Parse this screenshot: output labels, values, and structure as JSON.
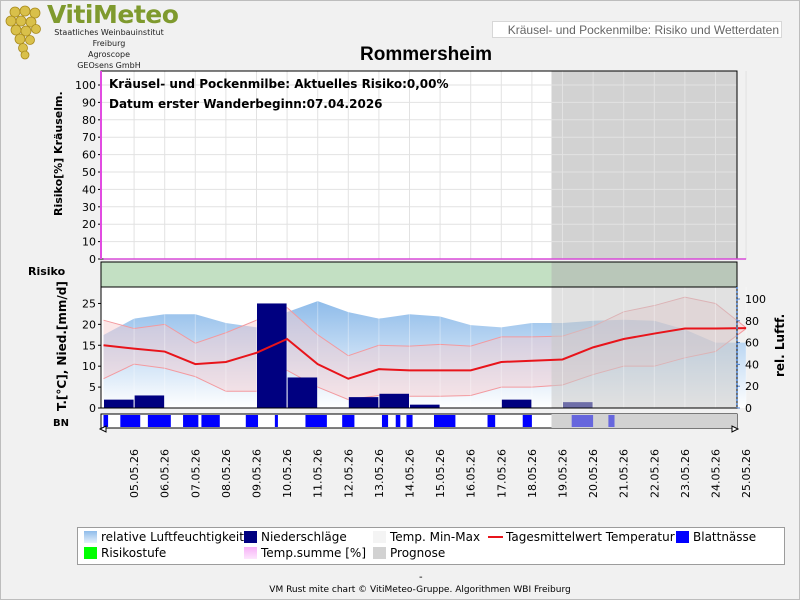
{
  "header": {
    "logo_title": "VitiMeteo",
    "logo_lines": [
      "Staatliches Weinbauinstitut Freiburg",
      "Agroscope",
      "GEOsens GmbH"
    ],
    "page_title": "Kräusel- und Pockenmilbe: Risiko und Wetterdaten"
  },
  "chart_title": "Rommersheim",
  "annotations": {
    "risk_line": "Kräusel- und Pockenmilbe: Aktuelles Risiko:0,00%",
    "date_line": "Datum erster Wanderbeginn:07.04.2026"
  },
  "colors": {
    "humidity": "#a9cdf0",
    "precipitation": "#000080",
    "temp_range": "#f9c9cc",
    "temp_mean": "#e8141b",
    "leaf_wetness": "#0000ff",
    "risk_level": "#00ff00",
    "temp_sum": "#f0a0f0",
    "forecast": "#d2d2d2",
    "risk_band": "#c3e0c3"
  },
  "legend": [
    {
      "label": "relative Luftfeuchtigkeit",
      "icon": "gradient-swatch"
    },
    {
      "label": "Niederschläge",
      "icon": "navy-swatch"
    },
    {
      "label": "Temp. Min-Max",
      "icon": "light-swatch"
    },
    {
      "label": "Tagesmittelwert Temperatur",
      "icon": "red-line"
    },
    {
      "label": "Blattnässe",
      "icon": "blue-swatch"
    },
    {
      "label": "Risikostufe",
      "icon": "green-swatch"
    },
    {
      "label": "Temp.summe [%]",
      "icon": "pink-swatch"
    },
    {
      "label": "Prognose",
      "icon": "gray-swatch"
    }
  ],
  "footer": {
    "dash": "-",
    "credit": "VM Rust mite chart © VitiMeteo-Gruppe. Algorithmen WBI Freiburg"
  },
  "chart_data": [
    {
      "type": "line",
      "panel": "risk",
      "ylabel": "Risiko[%] Kräuselm.",
      "yticks": [
        0,
        10,
        20,
        30,
        40,
        50,
        60,
        70,
        80,
        90,
        100
      ],
      "ylim": [
        0,
        100
      ],
      "series": [
        {
          "name": "Temp.summe [%]",
          "values": [
            0,
            0,
            0,
            0,
            0,
            0,
            0,
            0,
            0,
            0,
            0,
            0,
            0,
            0,
            0,
            0,
            0,
            0,
            0,
            0,
            0,
            0
          ]
        }
      ]
    },
    {
      "type": "area",
      "panel": "risk-band",
      "label": "Risiko",
      "series": [
        {
          "name": "Risikostufe",
          "values": [
            0,
            0,
            0,
            0,
            0,
            0,
            0,
            0,
            0,
            0,
            0,
            0,
            0,
            0,
            0,
            0,
            0,
            0,
            0,
            0,
            0,
            0
          ]
        }
      ]
    },
    {
      "type": "line",
      "panel": "weather",
      "ylabel": "T.[°C], Nied.[mm/d]",
      "ylabel2": "rel. Luftf.",
      "yticks": [
        0,
        5,
        10,
        15,
        20,
        25
      ],
      "ylim": [
        0,
        27.5
      ],
      "yticks2": [
        0,
        20,
        40,
        60,
        80,
        100
      ],
      "ylim2": [
        0,
        100
      ],
      "categories": [
        "05.05.26",
        "06.05.26",
        "07.05.26",
        "08.05.26",
        "09.05.26",
        "10.05.26",
        "11.05.26",
        "12.05.26",
        "13.05.26",
        "14.05.26",
        "15.05.26",
        "16.05.26",
        "17.05.26",
        "18.05.26",
        "19.05.26",
        "20.05.26",
        "21.05.26",
        "22.05.26",
        "23.05.26",
        "24.05.26",
        "25.05.26"
      ],
      "forecast_from": "19.05.26",
      "humidity_x": [
        "04.05.26",
        "05.05.26",
        "06.05.26",
        "07.05.26",
        "08.05.26",
        "09.05.26",
        "10.05.26",
        "11.05.26",
        "12.05.26",
        "13.05.26",
        "14.05.26",
        "15.05.26",
        "16.05.26",
        "17.05.26",
        "18.05.26",
        "19.05.26",
        "20.05.26",
        "21.05.26",
        "22.05.26",
        "23.05.26",
        "24.05.26",
        "25.05.26"
      ],
      "humidity": [
        67,
        82,
        86,
        86,
        78,
        74,
        88,
        98,
        88,
        82,
        86,
        84,
        76,
        74,
        78,
        78,
        80,
        81,
        80,
        72,
        60,
        60
      ],
      "temp_mean_x": [
        "04.05.26",
        "05.05.26",
        "06.05.26",
        "07.05.26",
        "08.05.26",
        "09.05.26",
        "10.05.26",
        "11.05.26",
        "12.05.26",
        "13.05.26",
        "14.05.26",
        "15.05.26",
        "16.05.26",
        "17.05.26",
        "18.05.26",
        "19.05.26",
        "20.05.26",
        "21.05.26",
        "22.05.26",
        "23.05.26",
        "24.05.26",
        "25.05.26"
      ],
      "temp_mean": [
        15,
        14.2,
        13.5,
        10.5,
        11,
        13.2,
        16.5,
        10.5,
        7,
        9.3,
        9,
        9,
        9,
        11,
        11.3,
        11.6,
        14.5,
        16.5,
        17.8,
        19,
        19,
        19.1
      ],
      "temp_max": [
        21,
        19,
        20,
        15.5,
        18,
        21,
        24,
        17.5,
        12.5,
        15,
        14.8,
        15.2,
        14.8,
        17,
        17,
        17.2,
        19.5,
        23,
        24.5,
        26.5,
        25,
        19.2
      ],
      "temp_min": [
        7,
        10.5,
        9.5,
        7.5,
        4,
        4,
        9,
        5,
        2,
        3,
        2.8,
        2.8,
        3,
        5,
        5,
        5.5,
        8,
        10,
        10,
        12,
        13.5,
        19
      ],
      "precip_x": [
        "05.05.26",
        "06.05.26",
        "07.05.26",
        "08.05.26",
        "09.05.26",
        "10.05.26",
        "11.05.26",
        "12.05.26",
        "13.05.26",
        "14.05.26",
        "15.05.26",
        "16.05.26",
        "17.05.26",
        "18.05.26",
        "19.05.26",
        "20.05.26",
        "21.05.26",
        "22.05.26",
        "23.05.26",
        "24.05.26",
        "25.05.26"
      ],
      "precip": [
        2,
        3,
        0,
        0,
        0,
        25,
        7.3,
        0,
        2.6,
        3.4,
        0.8,
        0,
        0,
        2,
        0,
        1.4,
        0,
        0,
        0,
        0,
        0
      ],
      "leaf_wetness": [
        [
          0.0,
          0.15
        ],
        [
          0.55,
          1.2
        ],
        [
          1.45,
          2.2
        ],
        [
          2.6,
          3.1
        ],
        [
          3.2,
          3.8
        ],
        [
          4.65,
          5.05
        ],
        [
          5.6,
          5.7
        ],
        [
          6.6,
          7.3
        ],
        [
          7.8,
          8.2
        ],
        [
          9.1,
          9.3
        ],
        [
          9.55,
          9.7
        ],
        [
          9.9,
          10.1
        ],
        [
          10.8,
          11.5
        ],
        [
          12.55,
          12.8
        ],
        [
          13.7,
          14.0
        ],
        [
          15.3,
          16.0
        ],
        [
          16.5,
          16.7
        ]
      ]
    }
  ]
}
